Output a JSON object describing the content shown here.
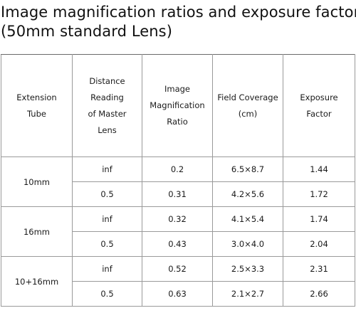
{
  "title": {
    "line1": "Image magnification ratios and exposure factors",
    "line2": "(50mm standard Lens)"
  },
  "table": {
    "headers": [
      [
        "Extension",
        "Tube"
      ],
      [
        "Distance",
        "Reading",
        "of Master",
        "Lens"
      ],
      [
        "Image",
        "Magnification",
        "Ratio"
      ],
      [
        "Field Coverage",
        "(cm)"
      ],
      [
        "Exposure",
        "Factor"
      ]
    ],
    "groups": [
      {
        "tube": "10mm",
        "rows": [
          {
            "distance": "inf",
            "ratio": "0.2",
            "coverage": "6.5×8.7",
            "factor": "1.44"
          },
          {
            "distance": "0.5",
            "ratio": "0.31",
            "coverage": "4.2×5.6",
            "factor": "1.72"
          }
        ]
      },
      {
        "tube": "16mm",
        "rows": [
          {
            "distance": "inf",
            "ratio": "0.32",
            "coverage": "4.1×5.4",
            "factor": "1.74"
          },
          {
            "distance": "0.5",
            "ratio": "0.43",
            "coverage": "3.0×4.0",
            "factor": "2.04"
          }
        ]
      },
      {
        "tube": "10+16mm",
        "rows": [
          {
            "distance": "inf",
            "ratio": "0.52",
            "coverage": "2.5×3.3",
            "factor": "2.31"
          },
          {
            "distance": "0.5",
            "ratio": "0.63",
            "coverage": "2.1×2.7",
            "factor": "2.66"
          }
        ]
      }
    ]
  }
}
